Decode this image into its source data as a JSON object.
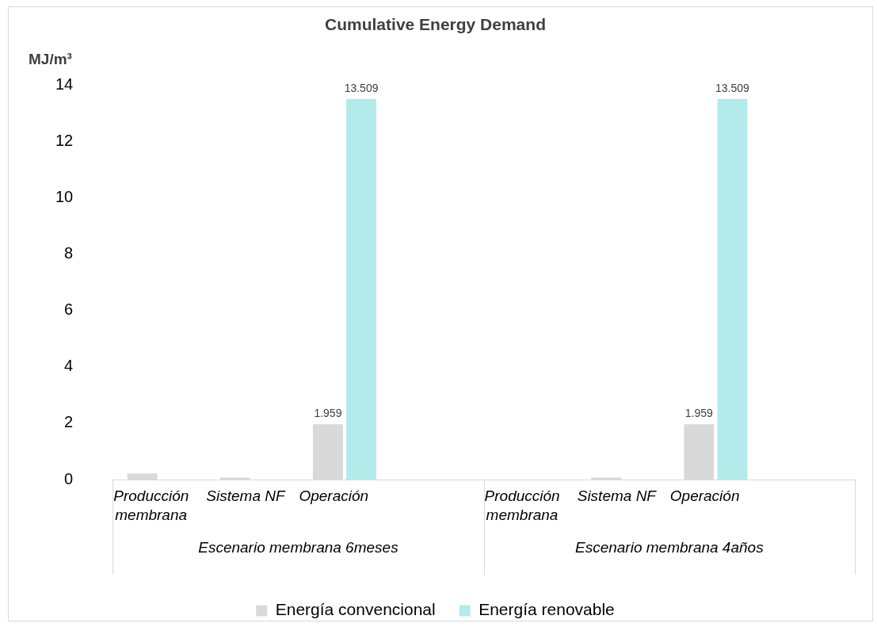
{
  "chart_data": {
    "type": "bar",
    "title": "Cumulative Energy Demand",
    "ylabel": "MJ/m³",
    "categories": [
      "Producción membrana",
      "Sistema NF",
      "Operación",
      null,
      "Producción membrana",
      "Sistema NF",
      "Operación",
      null
    ],
    "series": [
      {
        "name": "Energía convencional",
        "color": "#d9d9d9",
        "values": [
          0.22,
          0.07,
          1.959,
          0,
          null,
          0.07,
          1.959,
          0
        ],
        "value_labels": [
          null,
          null,
          "1.959",
          null,
          null,
          null,
          "1.959",
          null
        ]
      },
      {
        "name": "Energía renovable",
        "color": "#b3eaea",
        "values": [
          0,
          0,
          13.509,
          0,
          0,
          0,
          13.509,
          0
        ],
        "value_labels": [
          null,
          null,
          "13.509",
          null,
          null,
          null,
          "13.509",
          null
        ]
      }
    ],
    "annotations": [
      "Escenario membrana 6meses",
      "Escenario membrana 4años"
    ],
    "ylim": [
      0,
      14
    ],
    "yticks": [
      0,
      2,
      4,
      6,
      8,
      10,
      12,
      14
    ],
    "grid": false,
    "legend": "bottom"
  }
}
